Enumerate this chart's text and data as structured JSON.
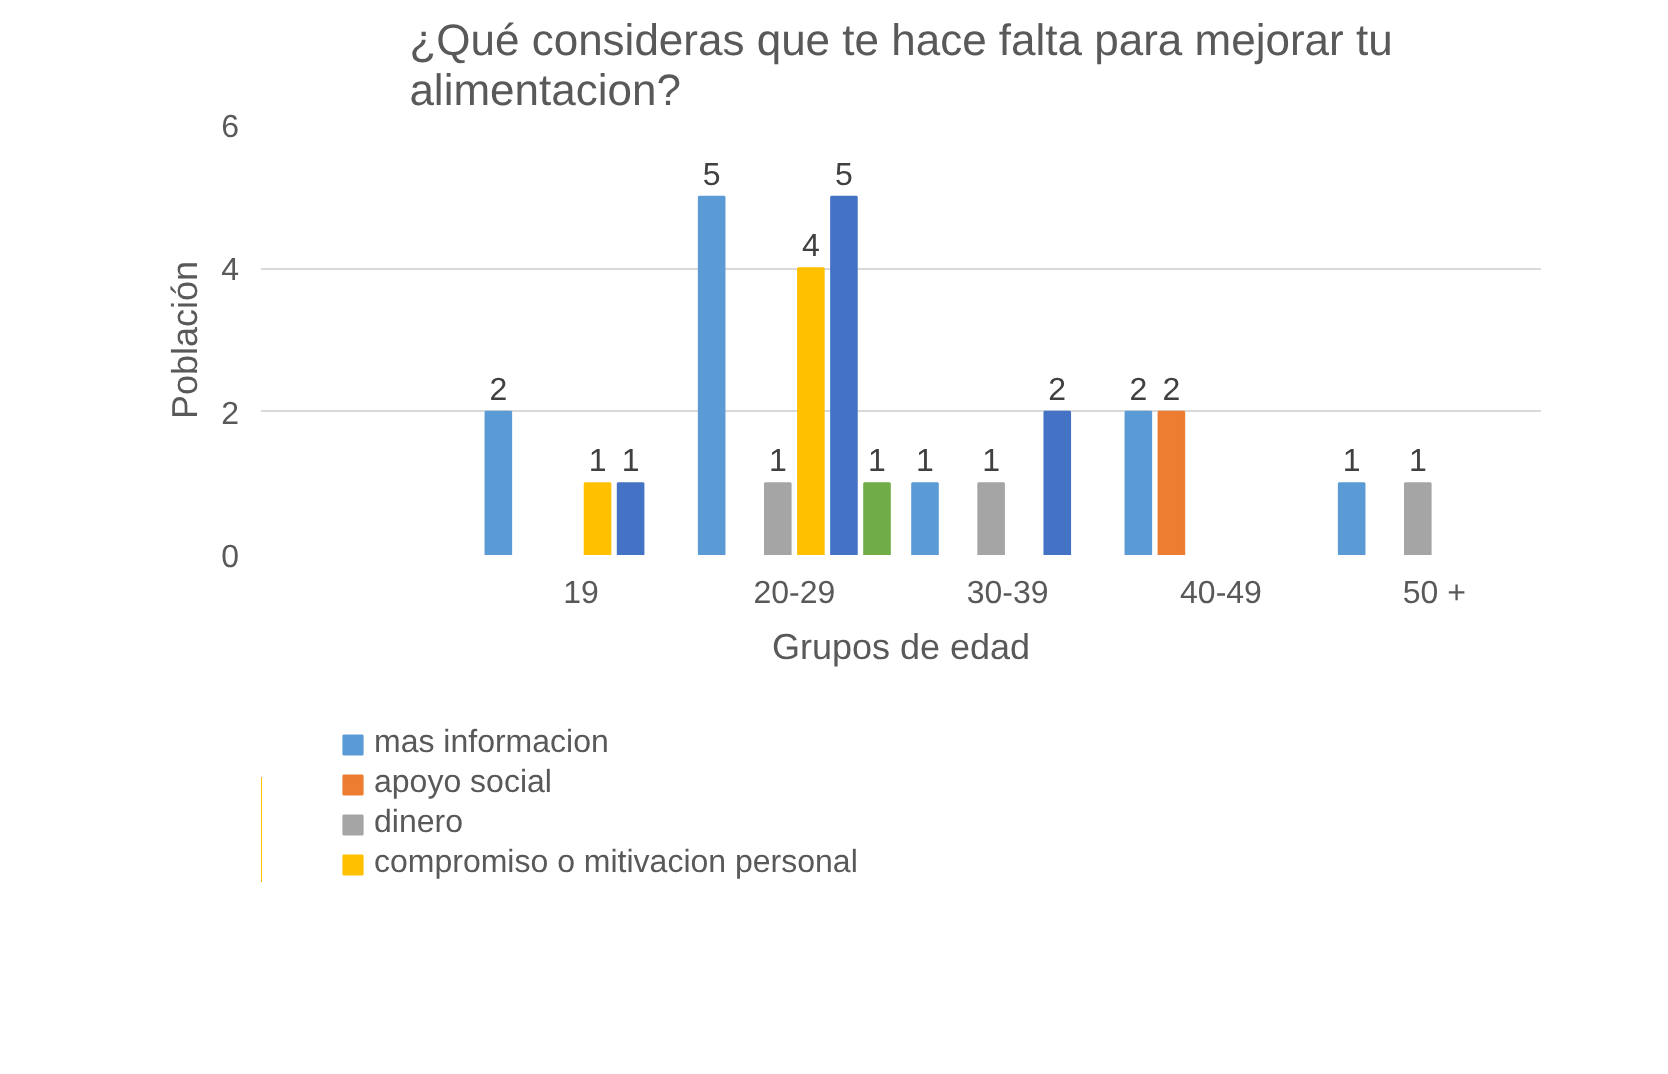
{
  "chart_data": {
    "type": "bar",
    "title": "¿Qué consideras que te hace falta para mejorar tu\nalimentacion?",
    "xlabel": "Grupos de edad",
    "ylabel": "Población",
    "categories": [
      null,
      "19",
      "20-29",
      "30-39",
      "40-49",
      "50 +"
    ],
    "series": [
      {
        "name": "mas informacion",
        "color": "#5b9bd5",
        "values": [
          null,
          2,
          5,
          1,
          2,
          1
        ]
      },
      {
        "name": "apoyo social",
        "color": "#ed7d31",
        "values": [
          null,
          null,
          null,
          null,
          2,
          null
        ]
      },
      {
        "name": "dinero",
        "color": "#a5a5a5",
        "values": [
          null,
          null,
          1,
          1,
          null,
          1
        ]
      },
      {
        "name": "compromiso o mitivacion personal",
        "color": "#ffc000",
        "values": [
          null,
          1,
          4,
          null,
          null,
          null
        ]
      },
      {
        "color": "#4472c4",
        "values": [
          null,
          1,
          5,
          2,
          null,
          null
        ]
      },
      {
        "color": "#70ad47",
        "values": [
          null,
          null,
          1,
          null,
          null,
          null
        ]
      }
    ],
    "ylim": [
      0,
      6
    ],
    "yticks": [
      0,
      2,
      4,
      6
    ],
    "grid": "y",
    "legend": "bottom",
    "data_labels": true
  }
}
